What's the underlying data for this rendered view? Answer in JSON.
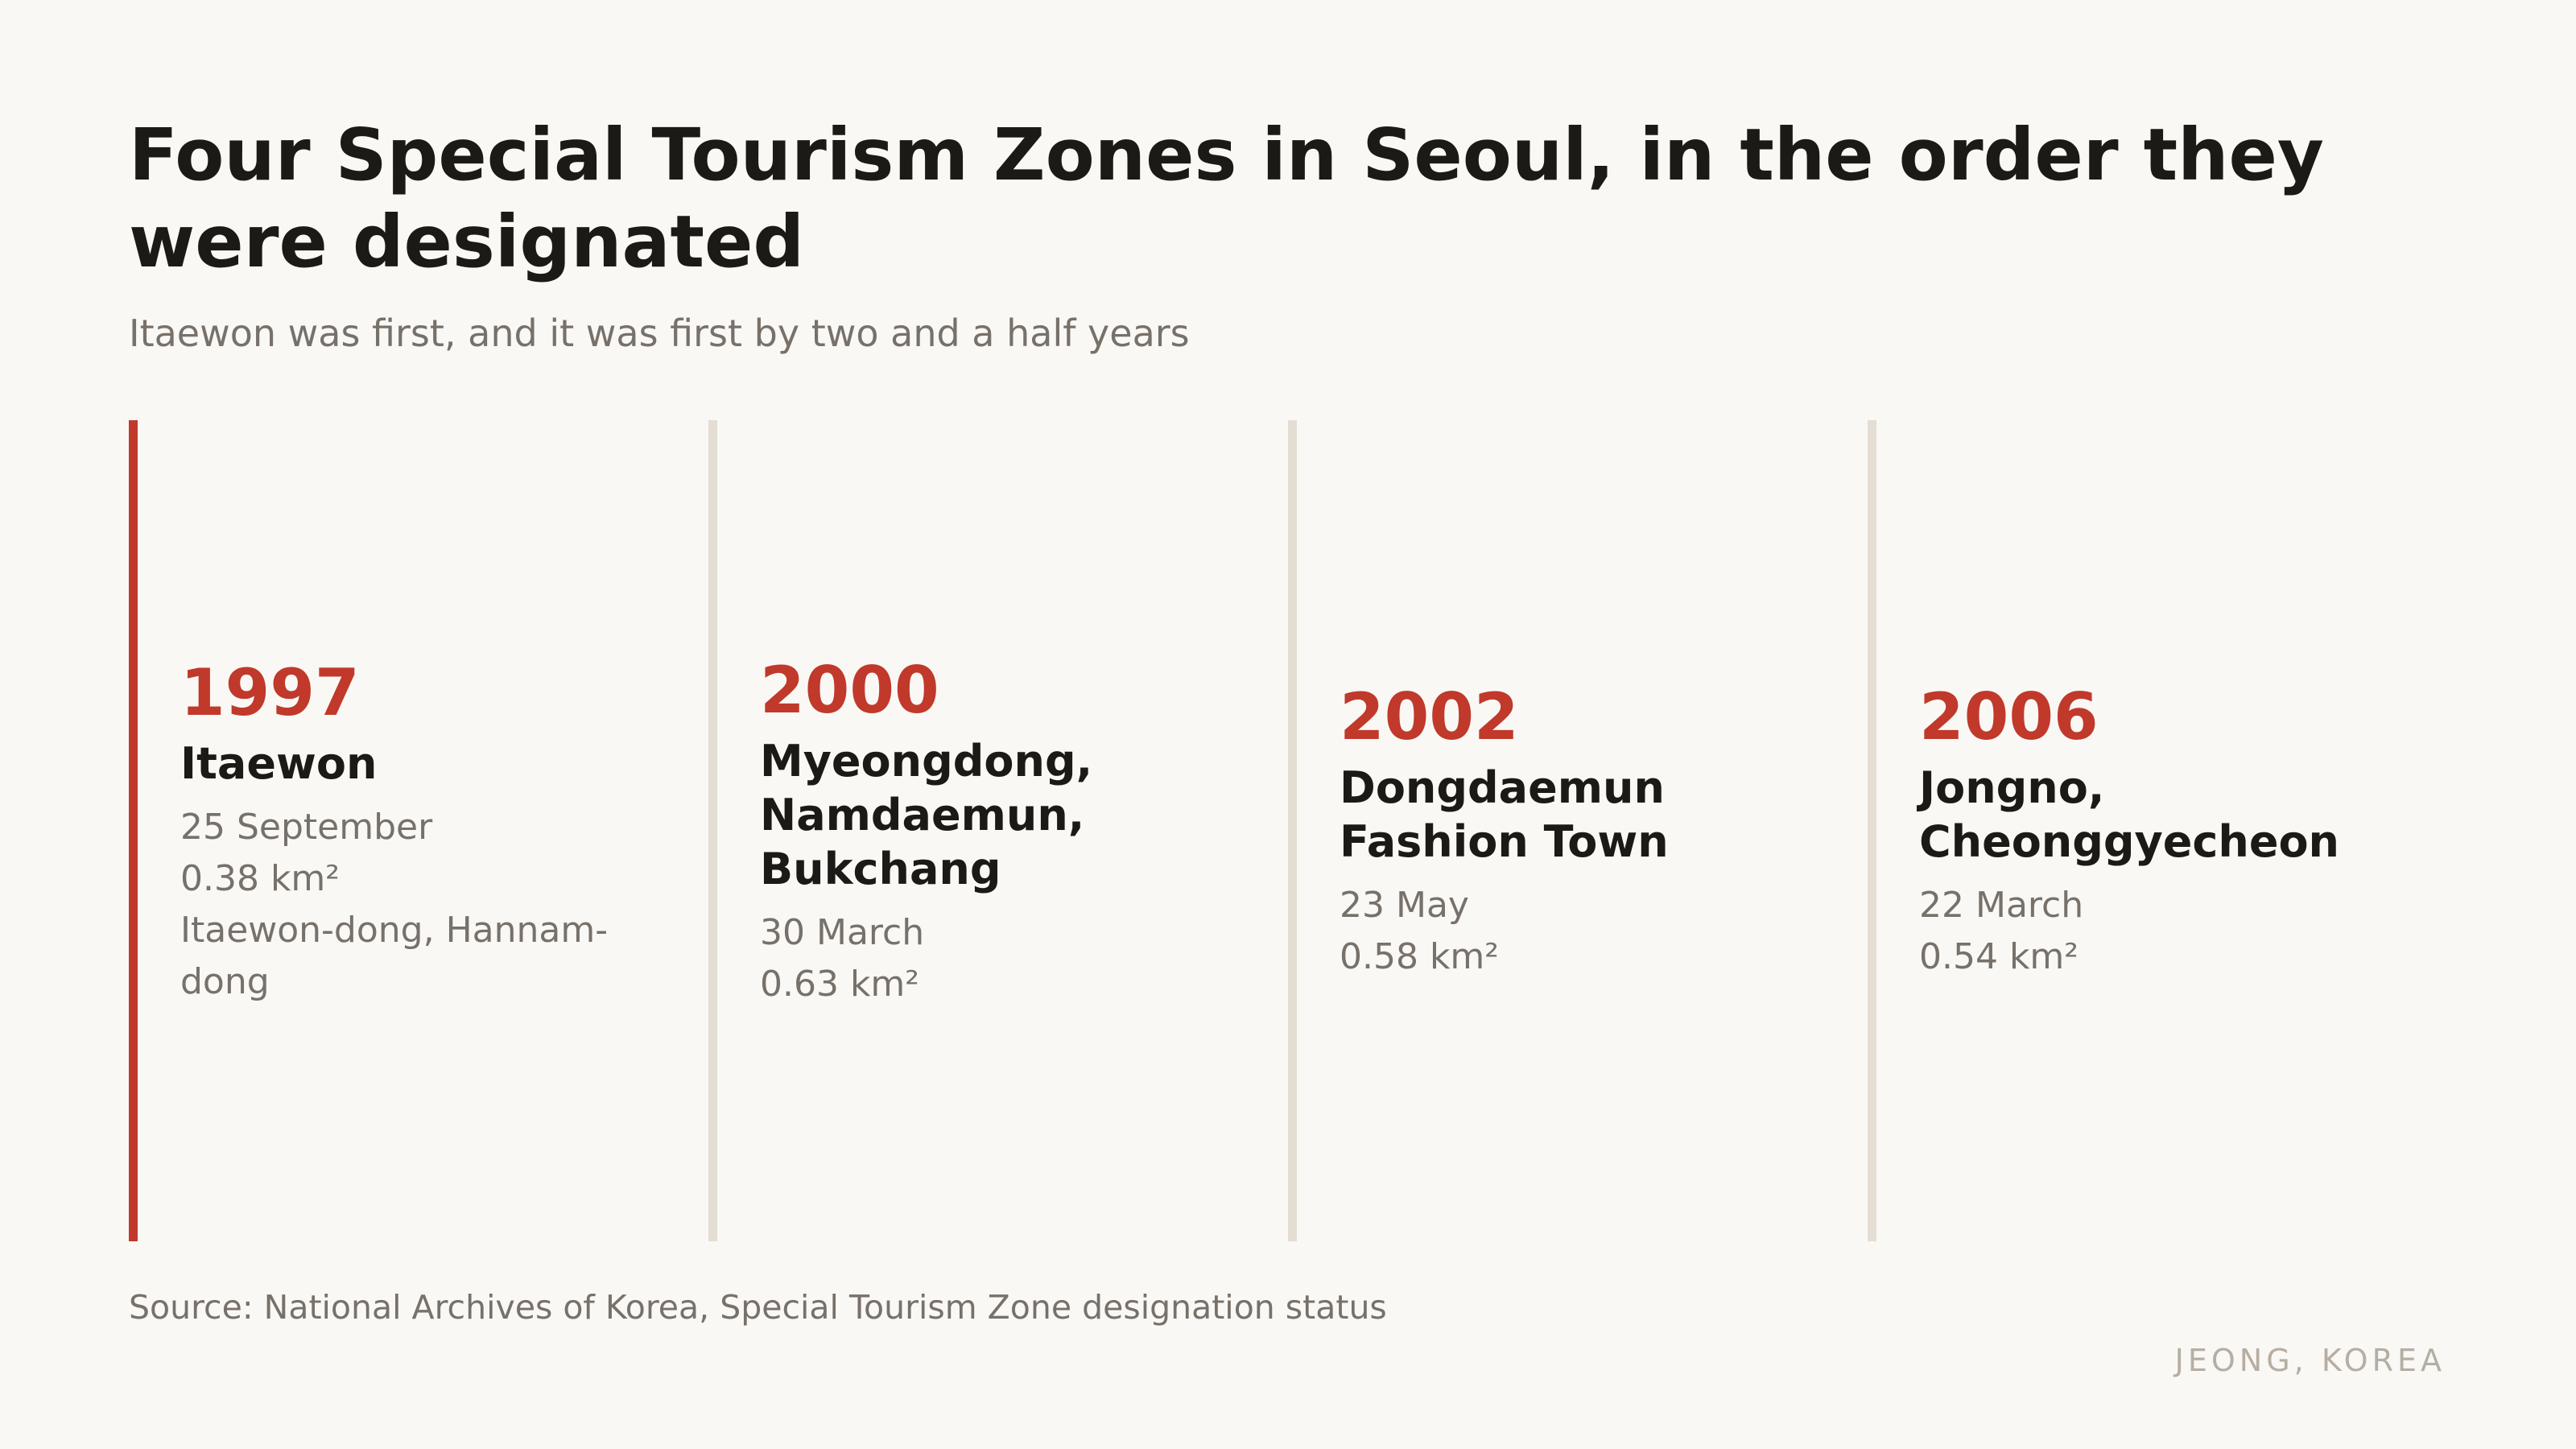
{
  "title": "Four Special Tourism Zones in Seoul, in the order they were designated",
  "subtitle": "Itaewon was first, and it was first by two and a half years",
  "colors": {
    "accent": "#c0392b",
    "rule": "#e4ddd3",
    "text": "#1c1a17",
    "muted": "#77716a"
  },
  "zones": [
    {
      "year": "1997",
      "name": "Itaewon",
      "date": "25 September",
      "area": "0.38 km²",
      "location": "Itaewon-dong, Hannam-dong"
    },
    {
      "year": "2000",
      "name": "Myeongdong, Namdaemun, Bukchang",
      "date": "30 March",
      "area": "0.63 km²"
    },
    {
      "year": "2002",
      "name": "Dongdaemun Fashion Town",
      "date": "23 May",
      "area": "0.58 km²"
    },
    {
      "year": "2006",
      "name": "Jongno, Cheonggyecheon",
      "date": "22 March",
      "area": "0.54 km²"
    }
  ],
  "source": "Source: National Archives of Korea, Special Tourism Zone designation status",
  "credit": "JEONG, KOREA"
}
